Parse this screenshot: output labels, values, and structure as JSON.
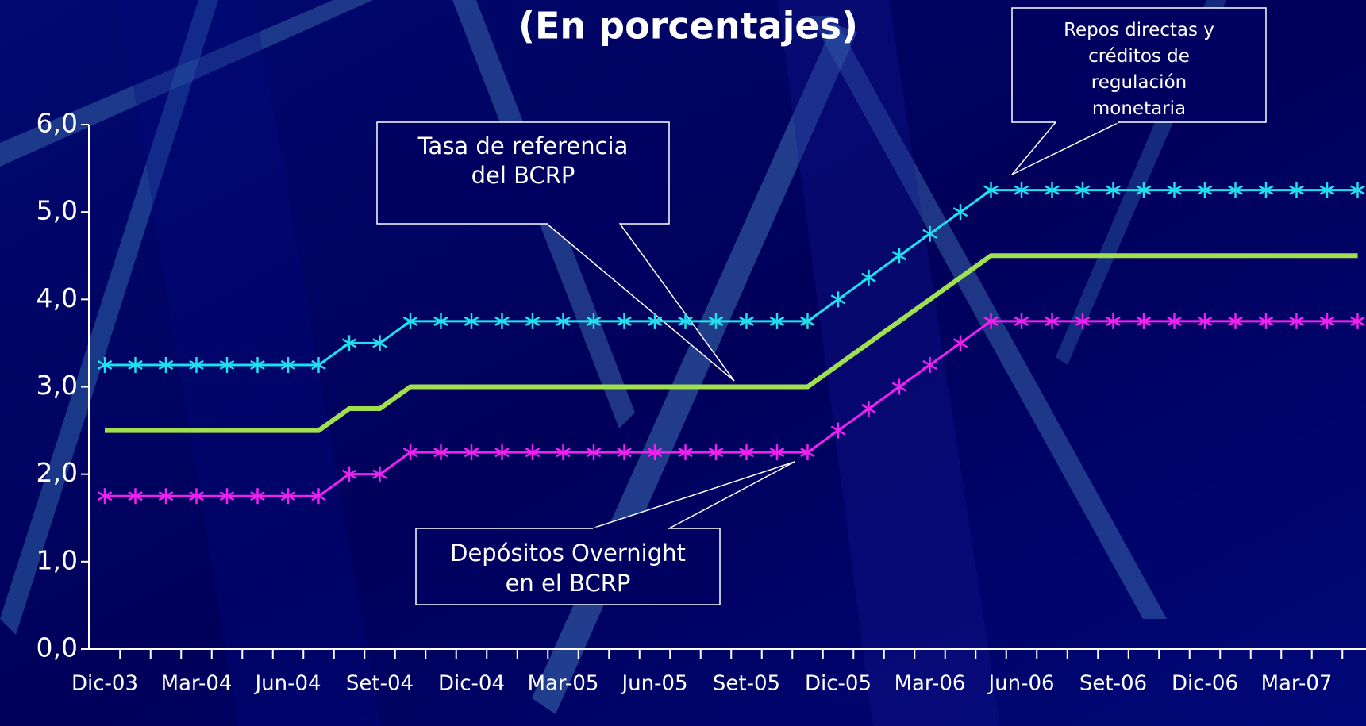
{
  "chart_data": {
    "type": "line",
    "title": "(En porcentajes)",
    "categories": [
      "Dic-03",
      null,
      null,
      "Mar-04",
      null,
      null,
      "Jun-04",
      null,
      null,
      "Set-04",
      null,
      null,
      "Dic-04",
      null,
      null,
      "Mar-05",
      null,
      null,
      "Jun-05",
      null,
      null,
      "Set-05",
      null,
      null,
      "Dic-05",
      null,
      null,
      "Mar-06",
      null,
      null,
      "Jun-06",
      null,
      null,
      "Set-06",
      null,
      null,
      "Dic-06",
      null,
      null,
      "Mar-07",
      null,
      null
    ],
    "series": [
      {
        "name": "Repos directas y créditos de regulación monetaria",
        "color": "#20e0f0",
        "marker": "asterisk",
        "values": [
          3.25,
          3.25,
          3.25,
          3.25,
          3.25,
          3.25,
          3.25,
          3.25,
          3.5,
          3.5,
          3.75,
          3.75,
          3.75,
          3.75,
          3.75,
          3.75,
          3.75,
          3.75,
          3.75,
          3.75,
          3.75,
          3.75,
          3.75,
          3.75,
          4.0,
          4.25,
          4.5,
          4.75,
          5.0,
          5.25,
          5.25,
          5.25,
          5.25,
          5.25,
          5.25,
          5.25,
          5.25,
          5.25,
          5.25,
          5.25,
          5.25,
          5.25
        ]
      },
      {
        "name": "Tasa de referencia del BCRP",
        "color": "#a0e050",
        "marker": "none",
        "values": [
          2.5,
          2.5,
          2.5,
          2.5,
          2.5,
          2.5,
          2.5,
          2.5,
          2.75,
          2.75,
          3.0,
          3.0,
          3.0,
          3.0,
          3.0,
          3.0,
          3.0,
          3.0,
          3.0,
          3.0,
          3.0,
          3.0,
          3.0,
          3.0,
          3.25,
          3.5,
          3.75,
          4.0,
          4.25,
          4.5,
          4.5,
          4.5,
          4.5,
          4.5,
          4.5,
          4.5,
          4.5,
          4.5,
          4.5,
          4.5,
          4.5,
          4.5
        ]
      },
      {
        "name": "Depósitos Overnight en el BCRP",
        "color": "#f020f0",
        "marker": "asterisk",
        "values": [
          1.75,
          1.75,
          1.75,
          1.75,
          1.75,
          1.75,
          1.75,
          1.75,
          2.0,
          2.0,
          2.25,
          2.25,
          2.25,
          2.25,
          2.25,
          2.25,
          2.25,
          2.25,
          2.25,
          2.25,
          2.25,
          2.25,
          2.25,
          2.25,
          2.5,
          2.75,
          3.0,
          3.25,
          3.5,
          3.75,
          3.75,
          3.75,
          3.75,
          3.75,
          3.75,
          3.75,
          3.75,
          3.75,
          3.75,
          3.75,
          3.75,
          3.75
        ]
      }
    ],
    "ylim": [
      0,
      6
    ],
    "yticks": [
      {
        "value": 0,
        "label": "0,0"
      },
      {
        "value": 1,
        "label": "1,0"
      },
      {
        "value": 2,
        "label": "2,0"
      },
      {
        "value": 3,
        "label": "3,0"
      },
      {
        "value": 4,
        "label": "4,0"
      },
      {
        "value": 5,
        "label": "5,0"
      },
      {
        "value": 6,
        "label": "6,0"
      }
    ],
    "grid": false
  }
}
